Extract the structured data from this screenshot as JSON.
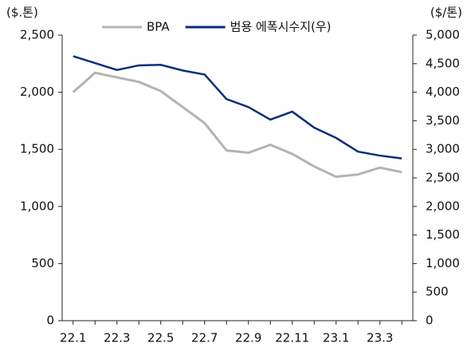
{
  "chart_data": {
    "type": "line",
    "y_axis_label": "($.톤)",
    "y2_axis_label": "($/톤)",
    "categories": [
      "22.1",
      null,
      "22.3",
      null,
      "22.5",
      null,
      "22.7",
      null,
      "22.9",
      null,
      "22.11",
      null,
      "23.1",
      null,
      "23.3",
      null
    ],
    "series": [
      {
        "name": "BPA",
        "color": "#b3b3b3",
        "values": [
          2000,
          2170,
          2130,
          2090,
          2010,
          1870,
          1730,
          1490,
          1470,
          1540,
          1460,
          1350,
          1260,
          1280,
          1340,
          1300
        ]
      },
      {
        "name": "범용 에폭시수지(우)",
        "color": "#0a2e7a",
        "axis": "y2",
        "values": [
          4630,
          4510,
          4390,
          4470,
          4480,
          4380,
          4310,
          3880,
          3740,
          3520,
          3660,
          3380,
          3200,
          2960,
          2890,
          2840
        ]
      }
    ],
    "ylim": [
      0,
      2500
    ],
    "yticks": [
      0,
      500,
      {
        "value": 1000,
        "label": "1,000"
      },
      {
        "value": 1500,
        "label": "1,500"
      },
      {
        "value": 2000,
        "label": "2,000"
      },
      {
        "value": 2500,
        "label": "2,500"
      }
    ],
    "y2lim": [
      0,
      5000
    ],
    "y2ticks": [
      0,
      500,
      {
        "value": 1000,
        "label": "1,000"
      },
      {
        "value": 1500,
        "label": "1,500"
      },
      {
        "value": 2000,
        "label": "2,000"
      },
      {
        "value": 2500,
        "label": "2,500"
      },
      {
        "value": 3000,
        "label": "3,000"
      },
      {
        "value": 3500,
        "label": "3,500"
      },
      {
        "value": 4000,
        "label": "4,000"
      },
      {
        "value": 4500,
        "label": "4,500"
      },
      {
        "value": 5000,
        "label": "5,000"
      }
    ],
    "legend": "top"
  }
}
